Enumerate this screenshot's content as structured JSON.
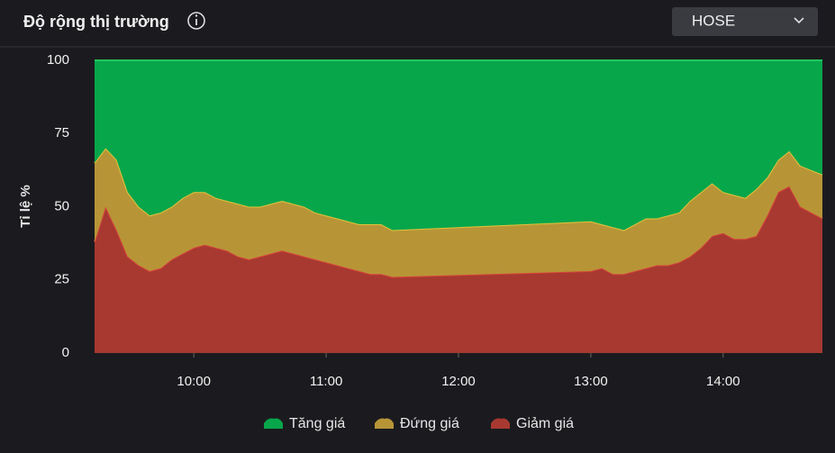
{
  "header": {
    "title": "Độ rộng thị trường",
    "exchange": "HOSE"
  },
  "chart_data": {
    "type": "stacked_area",
    "y_label": "Tỉ lệ %",
    "x": [
      "09:15",
      "09:20",
      "09:25",
      "09:30",
      "09:35",
      "09:40",
      "09:45",
      "09:50",
      "09:55",
      "10:00",
      "10:05",
      "10:10",
      "10:15",
      "10:20",
      "10:25",
      "10:30",
      "10:35",
      "10:40",
      "10:45",
      "10:50",
      "10:55",
      "11:00",
      "11:05",
      "11:10",
      "11:15",
      "11:20",
      "11:25",
      "11:30",
      "13:00",
      "13:05",
      "13:10",
      "13:15",
      "13:20",
      "13:25",
      "13:30",
      "13:35",
      "13:40",
      "13:45",
      "13:50",
      "13:55",
      "14:00",
      "14:05",
      "14:10",
      "14:15",
      "14:20",
      "14:25",
      "14:30",
      "14:35",
      "14:45"
    ],
    "xlim": [
      "09:15",
      "14:45"
    ],
    "xticks": [
      "10:00",
      "11:00",
      "12:00",
      "13:00",
      "14:00"
    ],
    "ylim": [
      0,
      100
    ],
    "yticks": [
      0,
      25,
      50,
      75,
      100
    ],
    "series": [
      {
        "name": "Tăng giá",
        "color": "#08a64b",
        "values": [
          35,
          30,
          34,
          45,
          50,
          53,
          52,
          50,
          47,
          45,
          45,
          47,
          48,
          49,
          50,
          50,
          49,
          48,
          49,
          50,
          52,
          53,
          54,
          55,
          56,
          56,
          56,
          58,
          55,
          56,
          57,
          58,
          56,
          54,
          54,
          53,
          52,
          48,
          45,
          42,
          45,
          46,
          47,
          44,
          40,
          34,
          31,
          36,
          39
        ]
      },
      {
        "name": "Đứng giá",
        "color": "#b79537",
        "values": [
          27,
          20,
          24,
          22,
          20,
          19,
          19,
          18,
          19,
          19,
          18,
          17,
          17,
          18,
          18,
          17,
          17,
          17,
          17,
          17,
          16,
          16,
          16,
          16,
          16,
          17,
          17,
          16,
          17,
          15,
          16,
          15,
          16,
          17,
          16,
          17,
          17,
          19,
          19,
          18,
          14,
          15,
          14,
          16,
          13,
          11,
          12,
          14,
          15
        ]
      },
      {
        "name": "Giảm giá",
        "color": "#a73931",
        "values": [
          38,
          50,
          42,
          33,
          30,
          28,
          29,
          32,
          34,
          36,
          37,
          36,
          35,
          33,
          32,
          33,
          34,
          35,
          34,
          33,
          32,
          31,
          30,
          29,
          28,
          27,
          27,
          26,
          28,
          29,
          27,
          27,
          28,
          29,
          30,
          30,
          31,
          33,
          36,
          40,
          41,
          39,
          39,
          40,
          47,
          55,
          57,
          50,
          46
        ]
      }
    ]
  }
}
